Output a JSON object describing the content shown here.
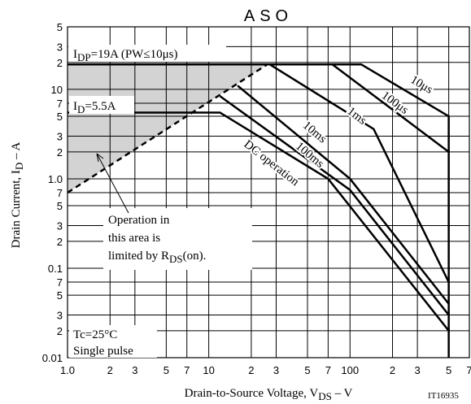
{
  "chart_data": {
    "type": "line",
    "title": "ASO",
    "x_label": [
      "Drain-to-Source Voltage, V",
      "DS",
      " – V"
    ],
    "y_label": [
      "Drain Current, I",
      "D",
      " – A"
    ],
    "xscale": "log",
    "yscale": "log",
    "xlim": [
      1,
      700
    ],
    "ylim": [
      0.01,
      50
    ],
    "xticks": [
      {
        "value": 1,
        "label": "1.0"
      },
      2,
      3,
      5,
      7,
      10,
      {
        "value": 20,
        "label": "2"
      },
      {
        "value": 30,
        "label": "3"
      },
      {
        "value": 50,
        "label": "5"
      },
      {
        "value": 70,
        "label": "7"
      },
      100,
      {
        "value": 200,
        "label": "2"
      },
      {
        "value": 300,
        "label": "3"
      },
      {
        "value": 500,
        "label": "5"
      },
      {
        "value": 700,
        "label": "7"
      }
    ],
    "yticks": [
      0.01,
      {
        "value": 0.02,
        "label": "2"
      },
      {
        "value": 0.03,
        "label": "3"
      },
      {
        "value": 0.05,
        "label": "5"
      },
      {
        "value": 0.07,
        "label": "7"
      },
      0.1,
      {
        "value": 0.2,
        "label": "2"
      },
      {
        "value": 0.3,
        "label": "3"
      },
      {
        "value": 0.5,
        "label": "5"
      },
      {
        "value": 0.7,
        "label": "7"
      },
      {
        "value": 1,
        "label": "1.0"
      },
      2,
      3,
      5,
      7,
      10,
      {
        "value": 20,
        "label": "2"
      },
      {
        "value": 30,
        "label": "3"
      },
      {
        "value": 50,
        "label": "5"
      }
    ],
    "grid": true,
    "color": "#000000",
    "series": [
      {
        "name": "10μs",
        "x": [
          1,
          120,
          500,
          500
        ],
        "values": [
          19,
          19,
          5,
          0.01
        ]
      },
      {
        "name": "100μs",
        "x": [
          75,
          500
        ],
        "values": [
          19,
          2
        ]
      },
      {
        "name": "1ms",
        "x": [
          27,
          147,
          500
        ],
        "values": [
          19,
          3.6,
          0.07
        ]
      },
      {
        "name": "10ms",
        "x": [
          16,
          100,
          500
        ],
        "values": [
          11,
          1.0,
          0.04
        ]
      },
      {
        "name": "100ms",
        "x": [
          12,
          100,
          500
        ],
        "values": [
          8.4,
          0.75,
          0.03
        ]
      },
      {
        "name": "DC operation",
        "x": [
          1,
          12,
          70,
          500
        ],
        "values": [
          5.5,
          5.5,
          1.0,
          0.02
        ]
      }
    ],
    "rds_limit": {
      "x": [
        1,
        26
      ],
      "values": [
        0.7,
        19
      ],
      "dashed": true,
      "shade": "#d3d3d3"
    },
    "annotations": {
      "idp": [
        "I",
        "DP",
        "=19A (PW≤10μs)"
      ],
      "id": [
        "I",
        "D",
        "=5.5A"
      ],
      "area_note": [
        [
          "Operation in"
        ],
        [
          "this area is"
        ],
        [
          "limited by R",
          "DS",
          "(on)."
        ]
      ],
      "conditions": [
        "Tc=25°C",
        "Single pulse"
      ],
      "code": "IT16935"
    }
  }
}
